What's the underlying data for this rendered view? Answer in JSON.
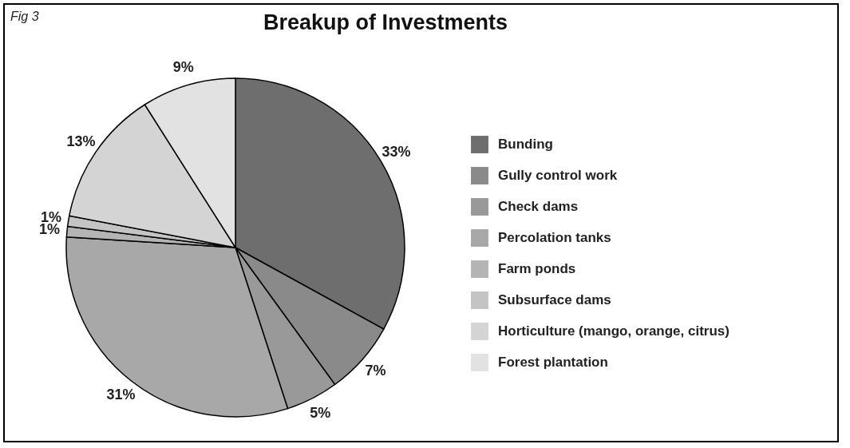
{
  "chart_data": {
    "type": "pie",
    "title": "Breakup of Investments",
    "annotations": [
      "Fig 3"
    ],
    "categories": [
      "Bunding",
      "Gully control work",
      "Check dams",
      "Percolation tanks",
      "Farm ponds",
      "Subsurface dams",
      "Horticulture (mango, orange, citrus)",
      "Forest plantation"
    ],
    "values": [
      33,
      7,
      5,
      31,
      1,
      1,
      13,
      9
    ],
    "value_labels": [
      "33%",
      "7%",
      "5%",
      "31%",
      "1%",
      "1%",
      "13%",
      "9%"
    ],
    "colors": [
      "#6e6e6e",
      "#8a8a8a",
      "#999999",
      "#a8a8a8",
      "#b4b4b4",
      "#c4c4c4",
      "#d4d4d4",
      "#e2e2e2"
    ],
    "legend": "right"
  }
}
